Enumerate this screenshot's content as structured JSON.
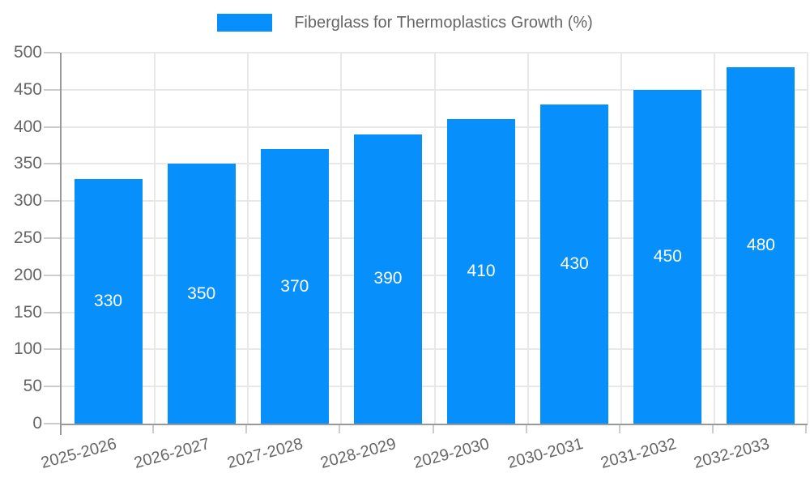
{
  "legend": {
    "label": "Fiberglass for Thermoplastics Growth (%)",
    "swatch_color": "#0790FB"
  },
  "chart_data": {
    "type": "bar",
    "title": "Fiberglass for Thermoplastics Growth (%)",
    "series_name": "Fiberglass for Thermoplastics Growth (%)",
    "categories": [
      "2025-2026",
      "2026-2027",
      "2027-2028",
      "2028-2029",
      "2029-2030",
      "2030-2031",
      "2031-2032",
      "2032-2033"
    ],
    "values": [
      330,
      350,
      370,
      390,
      410,
      430,
      450,
      480
    ],
    "data_labels": [
      "330",
      "350",
      "370",
      "390",
      "410",
      "430",
      "450",
      "480"
    ],
    "xlabel": "",
    "ylabel": "",
    "ylim": [
      0,
      500
    ],
    "yticks": [
      0,
      50,
      100,
      150,
      200,
      250,
      300,
      350,
      400,
      450,
      500
    ],
    "grid": true,
    "legend_position": "top",
    "x_label_rotation_deg": -15,
    "bar_color": "#0790FB",
    "data_label_color": "#ffffff",
    "axis_color": "#999999",
    "grid_color": "#e8e8e8",
    "tick_color": "#cccccc",
    "text_color": "#666666",
    "background_color": "#ffffff"
  }
}
